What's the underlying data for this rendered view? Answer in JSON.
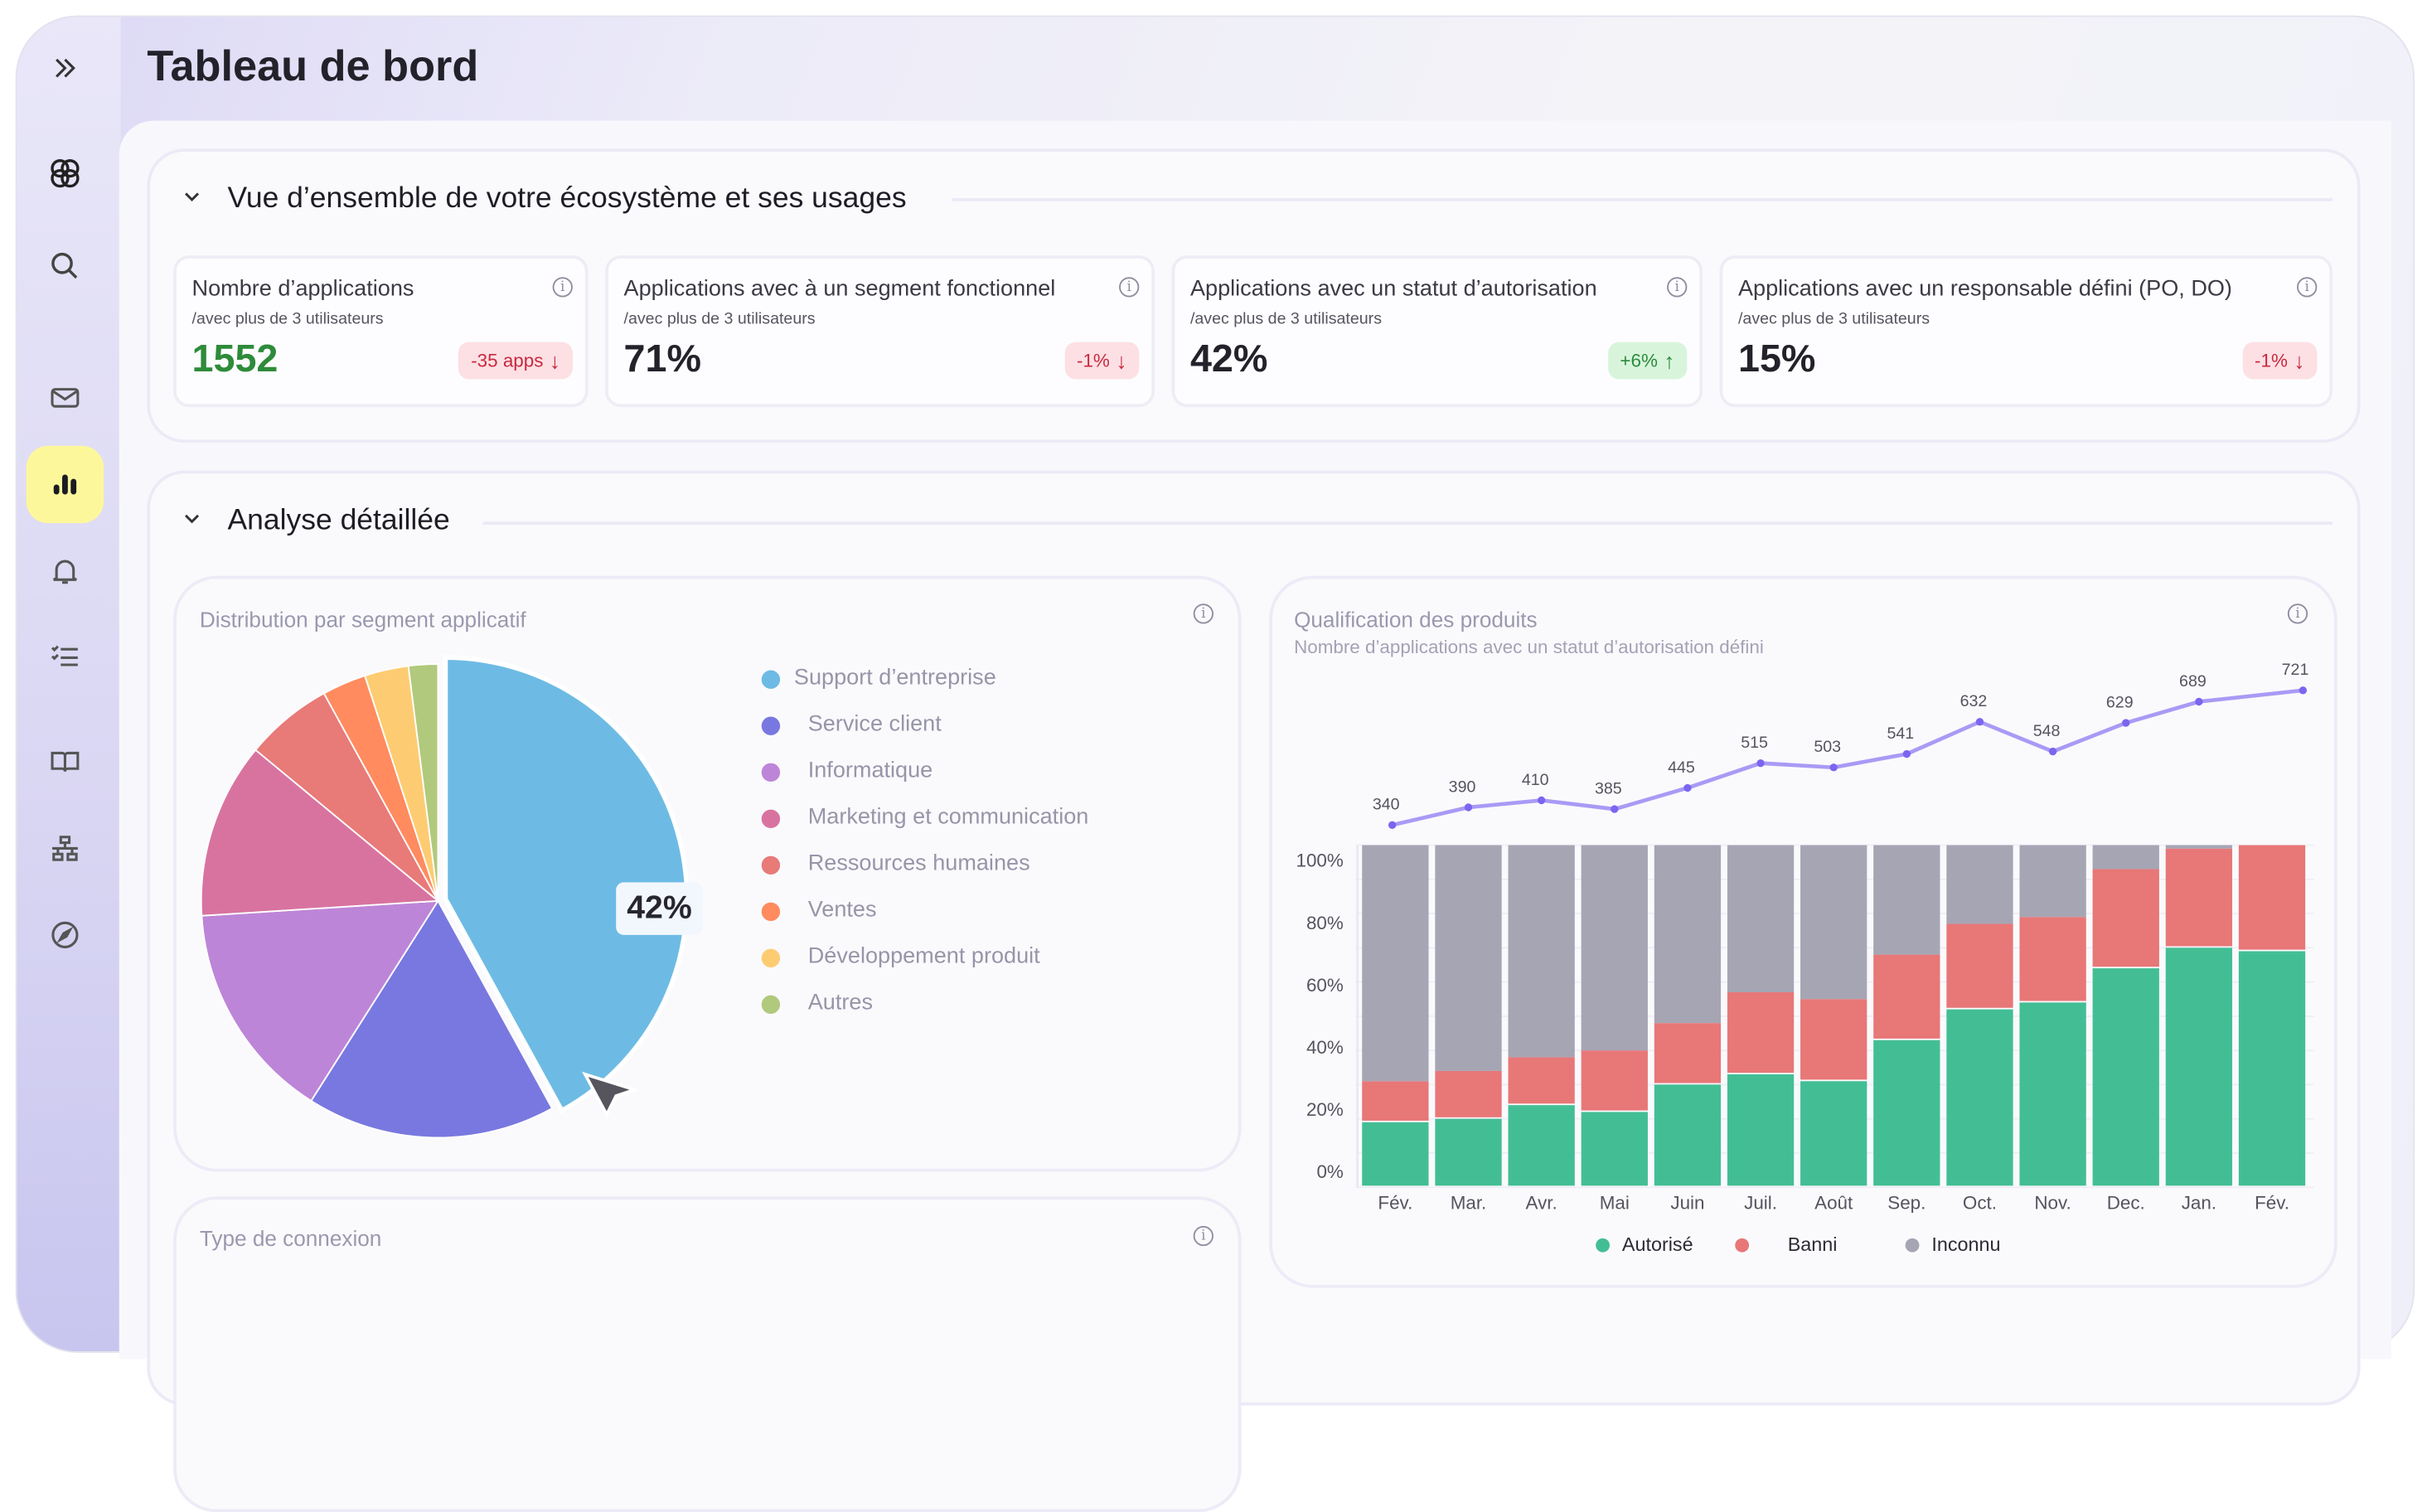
{
  "header": {
    "title": "Tableau de bord"
  },
  "sidebar": {
    "items": [
      {
        "icon": "chevrons-right-icon"
      },
      {
        "icon": "logo-icon"
      },
      {
        "icon": "search-icon"
      },
      {
        "icon": "mail-icon"
      },
      {
        "icon": "bar-chart-icon",
        "active": true
      },
      {
        "icon": "bell-icon"
      },
      {
        "icon": "checklist-icon"
      },
      {
        "icon": "book-icon"
      },
      {
        "icon": "network-icon"
      },
      {
        "icon": "compass-icon"
      }
    ]
  },
  "overview": {
    "title": "Vue d’ensemble de votre écosystème et ses usages",
    "kpis": [
      {
        "title": "Nombre d’applications",
        "subtitle": "/avec plus de 3 utilisateurs",
        "value": "1552",
        "delta": "-35 apps",
        "trend": "down",
        "value_color": "#2e8b3a"
      },
      {
        "title": "Applications avec à un segment fonctionnel",
        "subtitle": "/avec plus de 3 utilisateurs",
        "value": "71%",
        "delta": "-1%",
        "trend": "down"
      },
      {
        "title": "Applications avec un statut d’autorisation",
        "subtitle": "/avec plus de 3 utilisateurs",
        "value": "42%",
        "delta": "+6%",
        "trend": "up"
      },
      {
        "title": "Applications avec un responsable défini (PO, DO)",
        "subtitle": "/avec plus de 3 utilisateurs",
        "value": "15%",
        "delta": "-1%",
        "trend": "down"
      }
    ]
  },
  "analysis": {
    "title": "Analyse détaillée",
    "connection_card": {
      "title": "Type de connexion"
    }
  },
  "chart_data": [
    {
      "type": "pie",
      "title": "Distribution par segment applicatif",
      "highlight_label": "42%",
      "categories": [
        "Support d’entreprise",
        "Service client",
        "Informatique",
        "Marketing et communication",
        "Ressources humaines",
        "Ventes",
        "Développement produit",
        "Autres"
      ],
      "values": [
        42,
        17,
        15,
        12,
        6,
        3,
        3,
        2
      ],
      "colors": [
        "#6dbbe4",
        "#7878e0",
        "#bd85d8",
        "#d873a0",
        "#e87a78",
        "#ff8b5f",
        "#fdcc72",
        "#b1c97c"
      ],
      "legend": "right"
    },
    {
      "type": "bar",
      "stacked": true,
      "title": "Qualification des produits",
      "subtitle": "Nombre d’applications avec un statut d’autorisation défini",
      "categories": [
        "Fév.",
        "Mar.",
        "Avr.",
        "Mai",
        "Juin",
        "Juil.",
        "Août",
        "Sep.",
        "Oct.",
        "Nov.",
        "Dec.",
        "Jan.",
        "Fév."
      ],
      "yticks": [
        "0%",
        "20%",
        "40%",
        "60%",
        "80%",
        "100%"
      ],
      "ylim": [
        0,
        100
      ],
      "grid": true,
      "legend": "bottom",
      "series": [
        {
          "name": "Autorisé",
          "color": "#43be94",
          "values": [
            19,
            20,
            24,
            22,
            30,
            33,
            31,
            43,
            52,
            54,
            64,
            70,
            69
          ]
        },
        {
          "name": "Banni",
          "color": "#e87777",
          "values": [
            12,
            14,
            14,
            18,
            18,
            24,
            24,
            25,
            25,
            25,
            29,
            29,
            31
          ]
        },
        {
          "name": "Inconnu",
          "color": "#a6a5b4",
          "values": [
            69,
            66,
            62,
            60,
            52,
            43,
            45,
            32,
            23,
            21,
            7,
            1,
            0
          ]
        }
      ],
      "line": {
        "type": "line",
        "color": "#a99af5",
        "values": [
          340,
          390,
          410,
          385,
          445,
          515,
          503,
          541,
          632,
          548,
          629,
          689,
          721
        ]
      }
    }
  ]
}
